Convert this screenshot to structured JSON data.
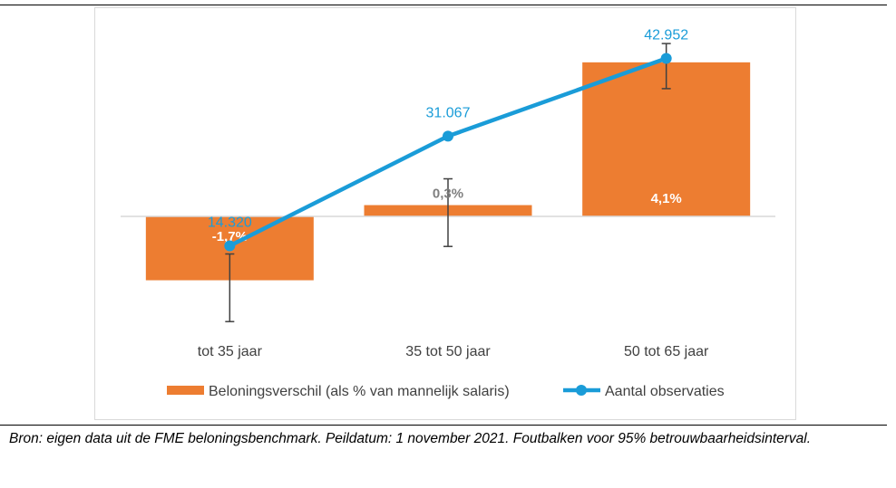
{
  "chart_data": {
    "type": "bar+line",
    "categories": [
      "tot 35 jaar",
      "35 tot 50 jaar",
      "50 tot 65 jaar"
    ],
    "series": [
      {
        "name": "Beloningsverschil (als % van mannelijk salaris)",
        "kind": "bar",
        "color": "#ED7D31",
        "values": [
          -1.7,
          0.3,
          4.1
        ],
        "labels": [
          "-1,7%",
          "0,3%",
          "4,1%"
        ],
        "error_low": [
          -2.8,
          -0.8,
          3.4
        ],
        "error_high": [
          -1.0,
          1.0,
          4.6
        ]
      },
      {
        "name": "Aantal observaties",
        "kind": "line",
        "color": "#1A9CD8",
        "values": [
          14320,
          31067,
          42952
        ],
        "labels": [
          "14.320",
          "31.067",
          "42.952"
        ]
      }
    ],
    "bar_axis_range": [
      -3,
      5
    ],
    "line_axis_range": [
      0,
      48000
    ],
    "grid": false,
    "legend_position": "bottom"
  },
  "caption": "Bron: eigen data uit de FME beloningsbenchmark. Peildatum: 1 november 2021. Foutbalken voor 95% betrouwbaarheidsinterval."
}
